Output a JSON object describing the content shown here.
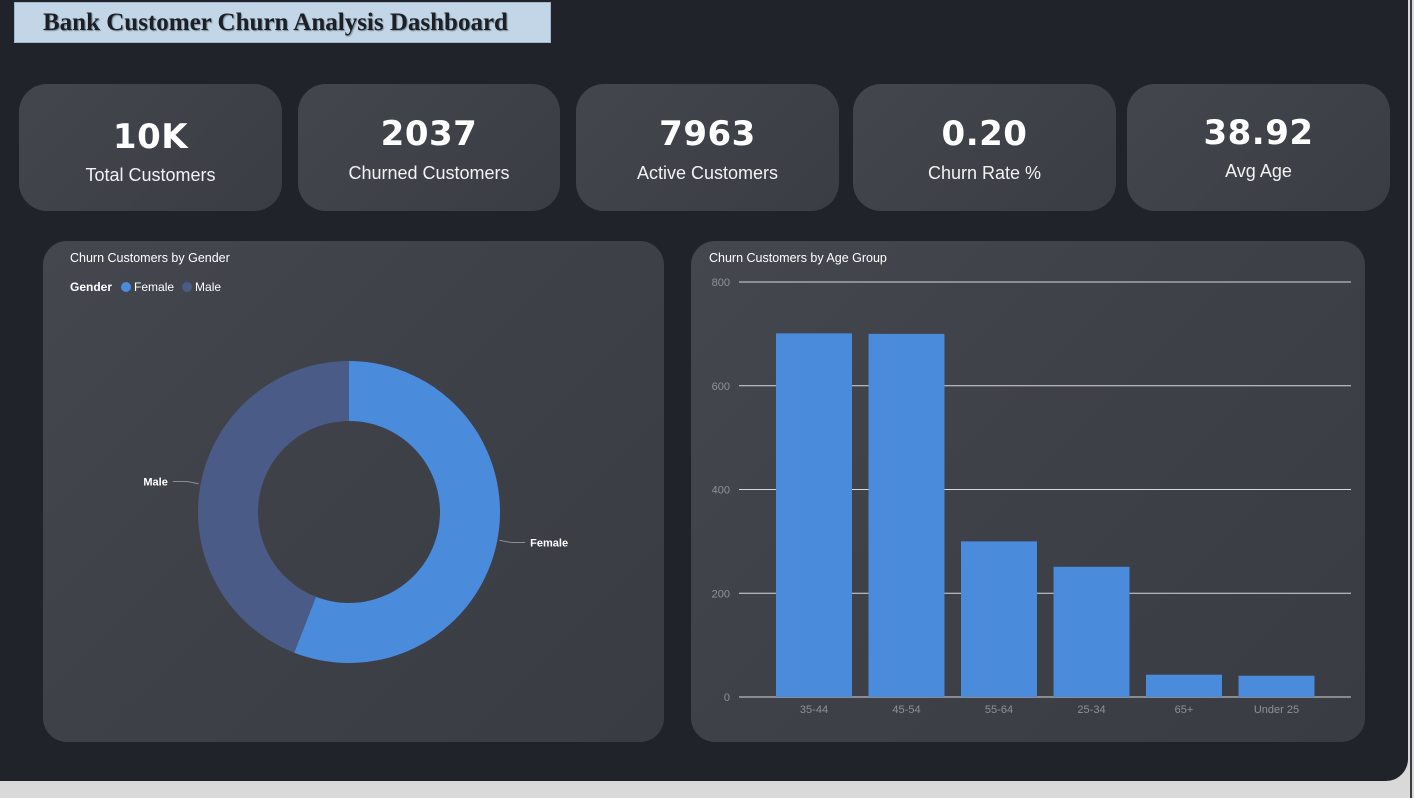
{
  "title": "Bank Customer Churn Analysis Dashboard",
  "kpis": [
    {
      "value": "10K",
      "label": "Total Customers"
    },
    {
      "value": "2037",
      "label": "Churned Customers"
    },
    {
      "value": "7963",
      "label": "Active Customers"
    },
    {
      "value": "0.20",
      "label": "Churn Rate %"
    },
    {
      "value": "38.92",
      "label": "Avg Age"
    }
  ],
  "colors": {
    "background": "#20232a",
    "card": "#3e4148",
    "female": "#4a8bdc",
    "male": "#4b5b87",
    "bar": "#4a8bdc",
    "title_box": "#c2d6e8"
  },
  "chart_data": [
    {
      "type": "pie",
      "title": "Churn Customers by Gender",
      "legend_title": "Gender",
      "legend_position": "top-left",
      "donut": true,
      "categories": [
        "Female",
        "Male"
      ],
      "values": [
        1139,
        898
      ],
      "data_labels": [
        "Female",
        "Male"
      ]
    },
    {
      "type": "bar",
      "title": "Churn Customers by Age Group",
      "categories": [
        "35-44",
        "45-54",
        "55-64",
        "25-34",
        "65+",
        "Under 25"
      ],
      "values": [
        701,
        700,
        300,
        251,
        43,
        41
      ],
      "ylim": [
        0,
        800
      ],
      "yticks": [
        0,
        200,
        400,
        600,
        800
      ],
      "xlabel": "",
      "ylabel": "",
      "grid": true
    }
  ]
}
